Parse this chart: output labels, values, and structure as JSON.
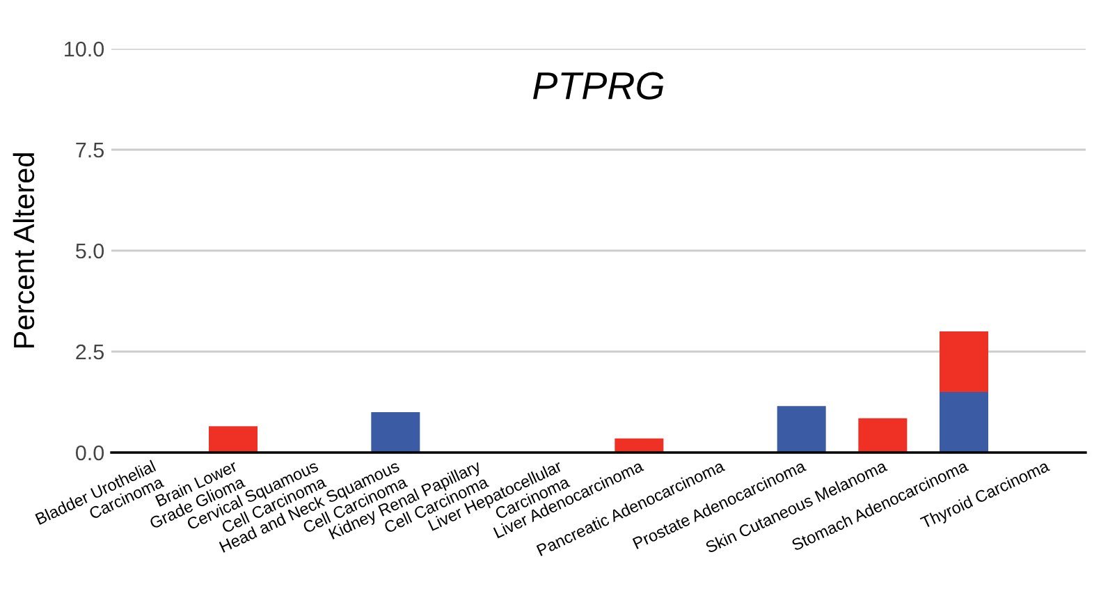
{
  "chart_data": {
    "type": "bar",
    "title": "PTPRG",
    "ylabel": "Percent Altered",
    "categories": [
      "Bladder Urothelial\nCarcinoma",
      "Brain Lower\nGrade Glioma",
      "Cervical Squamous\nCell Carcinoma",
      "Head and Neck Squamous\nCell Carcinoma",
      "Kidney Renal Papillary\nCell Carcinoma",
      "Liver Hepatocellular\nCarcinoma",
      "Liver Adenocarcinoma",
      "Pancreatic Adenocarcinoma",
      "Prostate Adenocarcinoma",
      "Skin Cutaneous Melanoma",
      "Stomach Adenocarcinoma",
      "Thyroid Carcinoma"
    ],
    "series": [
      {
        "color": "#3b5ba5",
        "values": [
          null,
          null,
          null,
          1.0,
          null,
          null,
          null,
          null,
          1.15,
          null,
          1.5,
          null
        ]
      },
      {
        "color": "#ee3124",
        "values": [
          null,
          0.65,
          null,
          null,
          null,
          null,
          0.35,
          null,
          null,
          0.85,
          1.5,
          null
        ]
      }
    ],
    "stacked": true,
    "ylim": [
      0,
      10
    ],
    "yticks": [
      {
        "value": 0,
        "label": "0.0"
      },
      {
        "value": 2.5,
        "label": "2.5"
      },
      {
        "value": 5,
        "label": "5.0"
      },
      {
        "value": 7.5,
        "label": "7.5"
      },
      {
        "value": 10,
        "label": "10.0"
      }
    ],
    "grid": "y"
  }
}
